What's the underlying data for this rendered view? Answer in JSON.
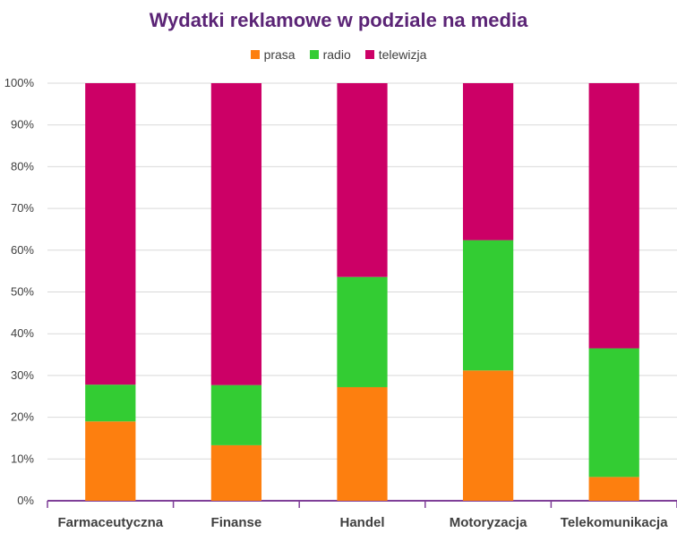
{
  "chart_data": {
    "type": "bar",
    "stacked": true,
    "percent": true,
    "title": "Wydatki reklamowe w podziale na media",
    "categories": [
      "Farmaceutyczna",
      "Finanse",
      "Handel",
      "Motoryzacja",
      "Telekomunikacja"
    ],
    "series": [
      {
        "name": "prasa",
        "color": "#fd7f0f",
        "values": [
          19,
          13.3,
          27.2,
          31.2,
          5.7
        ]
      },
      {
        "name": "radio",
        "color": "#33cc33",
        "values": [
          8.8,
          14.4,
          26.4,
          31.2,
          30.8
        ]
      },
      {
        "name": "telewizja",
        "color": "#cc0066",
        "values": [
          72.2,
          72.3,
          46.4,
          37.6,
          63.5
        ]
      }
    ],
    "ylim": [
      0,
      100
    ],
    "yticks": [
      "0%",
      "10%",
      "20%",
      "30%",
      "40%",
      "50%",
      "60%",
      "70%",
      "80%",
      "90%",
      "100%"
    ],
    "grid": true,
    "legend_position": "top"
  }
}
